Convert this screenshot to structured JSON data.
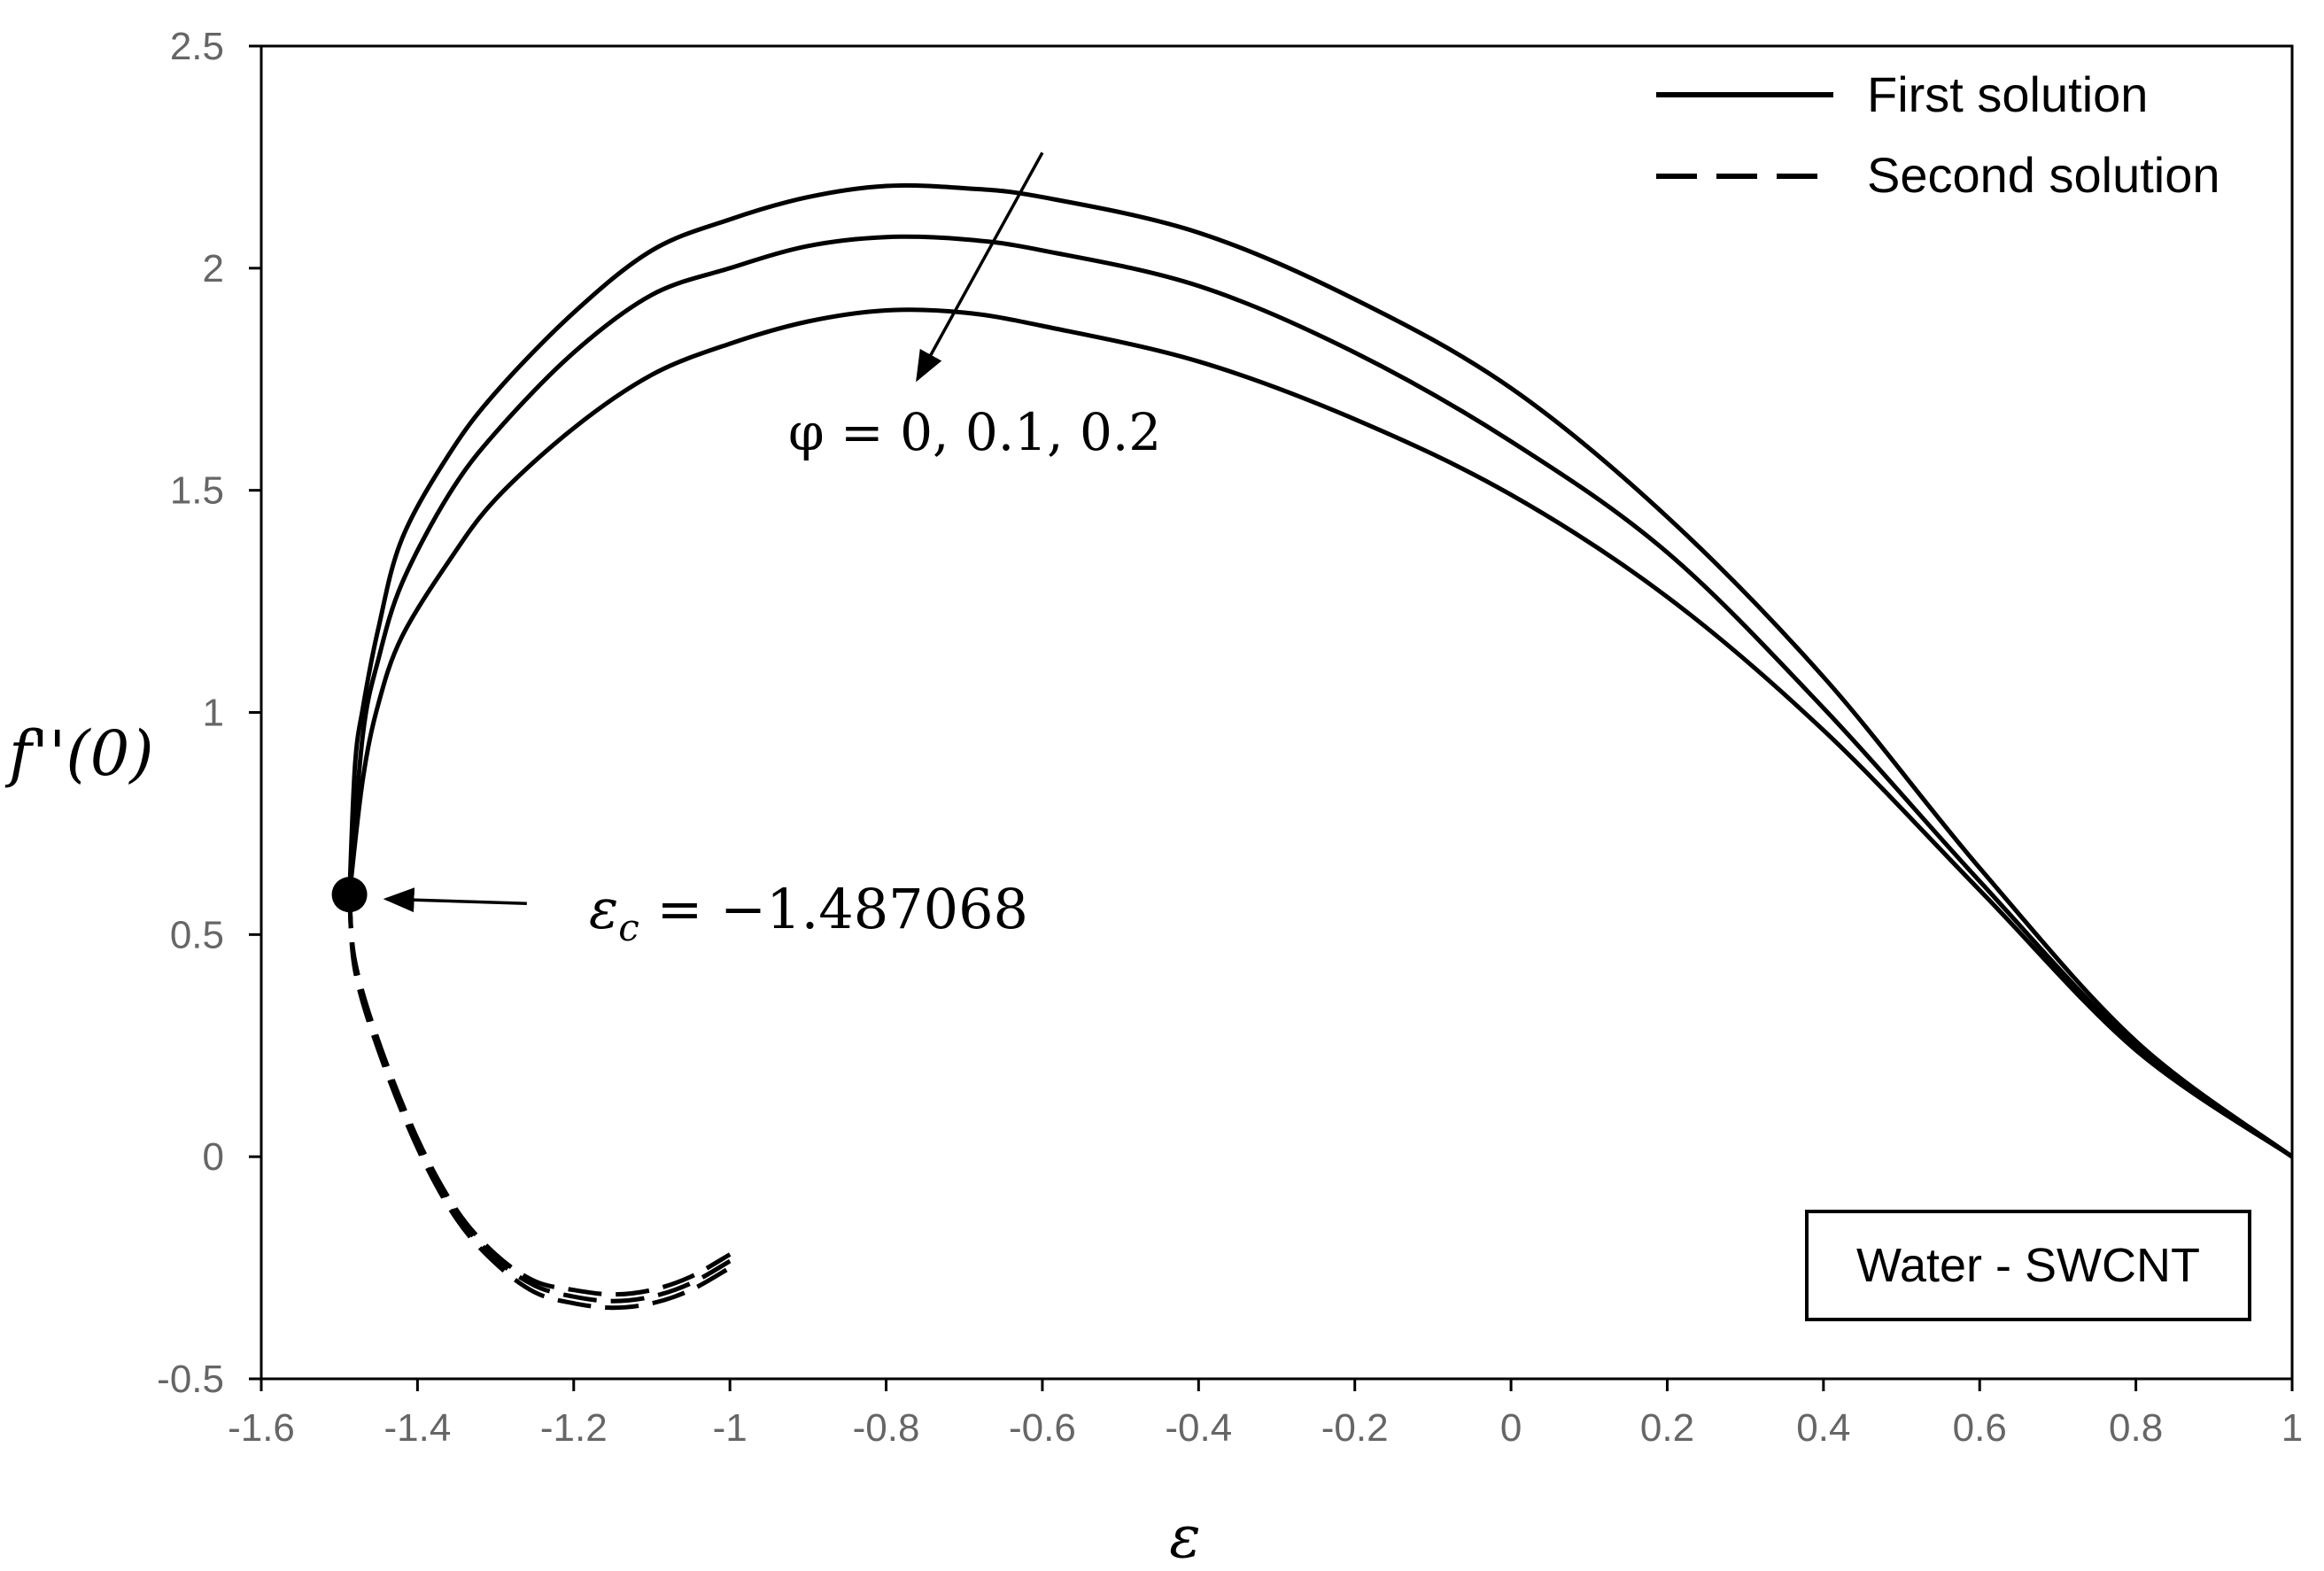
{
  "chart_data": {
    "type": "line",
    "title": "",
    "xlabel": "ε",
    "ylabel": "f''(0)",
    "xlim": [
      -1.6,
      1.0
    ],
    "ylim": [
      -0.5,
      2.5
    ],
    "x_ticks": [
      "-1.6",
      "-1.4",
      "-1.2",
      "-1",
      "-0.8",
      "-0.6",
      "-0.4",
      "-0.2",
      "0",
      "0.2",
      "0.4",
      "0.6",
      "0.8",
      "1"
    ],
    "y_ticks": [
      "-0.5",
      "0",
      "0.5",
      "1",
      "1.5",
      "2",
      "2.5"
    ],
    "grid": false,
    "legend": {
      "position": "top-right",
      "entries": [
        {
          "label": "First solution",
          "style": "solid"
        },
        {
          "label": "Second solution",
          "style": "dashed"
        }
      ]
    },
    "annotations": {
      "phi_label": "φ = 0, 0.1, 0.2",
      "critical_label_symbol": "ε",
      "critical_label_subscript": "c",
      "critical_label_value": " = −1.487068",
      "box_label": "Water - SWCNT"
    },
    "critical_point": {
      "x": -1.487068,
      "y": 0.59
    },
    "phi_arrow": {
      "from": [
        -0.6,
        2.26
      ],
      "to": [
        -0.76,
        1.75
      ]
    },
    "critical_arrow": {
      "from": [
        -1.26,
        0.57
      ],
      "to": [
        -1.44,
        0.58
      ]
    },
    "series": [
      {
        "name": "First solution, φ = 0",
        "style": "solid",
        "points": [
          [
            -1.487068,
            0.59
          ],
          [
            -1.48,
            0.88
          ],
          [
            -1.47,
            1.01
          ],
          [
            -1.45,
            1.19
          ],
          [
            -1.42,
            1.39
          ],
          [
            -1.36,
            1.58
          ],
          [
            -1.3,
            1.72
          ],
          [
            -1.2,
            1.9
          ],
          [
            -1.1,
            2.04
          ],
          [
            -1.0,
            2.11
          ],
          [
            -0.9,
            2.16
          ],
          [
            -0.8,
            2.185
          ],
          [
            -0.7,
            2.18
          ],
          [
            -0.6,
            2.16
          ],
          [
            -0.4,
            2.08
          ],
          [
            -0.2,
            1.93
          ],
          [
            0.0,
            1.73
          ],
          [
            0.2,
            1.44
          ],
          [
            0.4,
            1.08
          ],
          [
            0.6,
            0.65
          ],
          [
            0.8,
            0.26
          ],
          [
            1.0,
            0.0
          ]
        ]
      },
      {
        "name": "First solution, φ = 0.1",
        "style": "solid",
        "points": [
          [
            -1.487068,
            0.59
          ],
          [
            -1.47,
            0.95
          ],
          [
            -1.45,
            1.12
          ],
          [
            -1.42,
            1.29
          ],
          [
            -1.36,
            1.49
          ],
          [
            -1.3,
            1.63
          ],
          [
            -1.2,
            1.81
          ],
          [
            -1.1,
            1.94
          ],
          [
            -1.0,
            2.0
          ],
          [
            -0.9,
            2.05
          ],
          [
            -0.8,
            2.07
          ],
          [
            -0.7,
            2.065
          ],
          [
            -0.6,
            2.04
          ],
          [
            -0.4,
            1.96
          ],
          [
            -0.2,
            1.81
          ],
          [
            0.0,
            1.61
          ],
          [
            0.2,
            1.36
          ],
          [
            0.4,
            1.01
          ],
          [
            0.6,
            0.62
          ],
          [
            0.8,
            0.25
          ],
          [
            1.0,
            0.0
          ]
        ]
      },
      {
        "name": "First solution, φ = 0.2",
        "style": "solid",
        "points": [
          [
            -1.487068,
            0.59
          ],
          [
            -1.47,
            0.85
          ],
          [
            -1.45,
            1.02
          ],
          [
            -1.42,
            1.17
          ],
          [
            -1.36,
            1.34
          ],
          [
            -1.3,
            1.48
          ],
          [
            -1.2,
            1.64
          ],
          [
            -1.1,
            1.76
          ],
          [
            -1.0,
            1.83
          ],
          [
            -0.9,
            1.88
          ],
          [
            -0.8,
            1.905
          ],
          [
            -0.7,
            1.9
          ],
          [
            -0.6,
            1.87
          ],
          [
            -0.4,
            1.79
          ],
          [
            -0.2,
            1.66
          ],
          [
            0.0,
            1.49
          ],
          [
            0.2,
            1.26
          ],
          [
            0.4,
            0.96
          ],
          [
            0.6,
            0.6
          ],
          [
            0.8,
            0.24
          ],
          [
            1.0,
            0.0
          ]
        ]
      },
      {
        "name": "Second solution, φ = 0",
        "style": "dashed",
        "points": [
          [
            -1.487068,
            0.59
          ],
          [
            -1.48,
            0.44
          ],
          [
            -1.45,
            0.26
          ],
          [
            -1.4,
            0.04
          ],
          [
            -1.35,
            -0.12
          ],
          [
            -1.3,
            -0.22
          ],
          [
            -1.25,
            -0.28
          ],
          [
            -1.2,
            -0.3
          ],
          [
            -1.15,
            -0.31
          ],
          [
            -1.1,
            -0.3
          ],
          [
            -1.05,
            -0.27
          ],
          [
            -1.0,
            -0.22
          ]
        ]
      },
      {
        "name": "Second solution, φ = 0.1",
        "style": "dashed",
        "points": [
          [
            -1.487068,
            0.59
          ],
          [
            -1.48,
            0.43
          ],
          [
            -1.45,
            0.25
          ],
          [
            -1.4,
            0.03
          ],
          [
            -1.35,
            -0.13
          ],
          [
            -1.3,
            -0.23
          ],
          [
            -1.25,
            -0.29
          ],
          [
            -1.2,
            -0.315
          ],
          [
            -1.15,
            -0.325
          ],
          [
            -1.1,
            -0.315
          ],
          [
            -1.05,
            -0.285
          ],
          [
            -1.0,
            -0.235
          ]
        ]
      },
      {
        "name": "Second solution, φ = 0.2",
        "style": "dashed",
        "points": [
          [
            -1.487068,
            0.59
          ],
          [
            -1.48,
            0.42
          ],
          [
            -1.45,
            0.24
          ],
          [
            -1.4,
            0.02
          ],
          [
            -1.35,
            -0.14
          ],
          [
            -1.3,
            -0.24
          ],
          [
            -1.25,
            -0.305
          ],
          [
            -1.2,
            -0.33
          ],
          [
            -1.15,
            -0.34
          ],
          [
            -1.1,
            -0.33
          ],
          [
            -1.05,
            -0.3
          ],
          [
            -1.0,
            -0.25
          ]
        ]
      }
    ]
  }
}
